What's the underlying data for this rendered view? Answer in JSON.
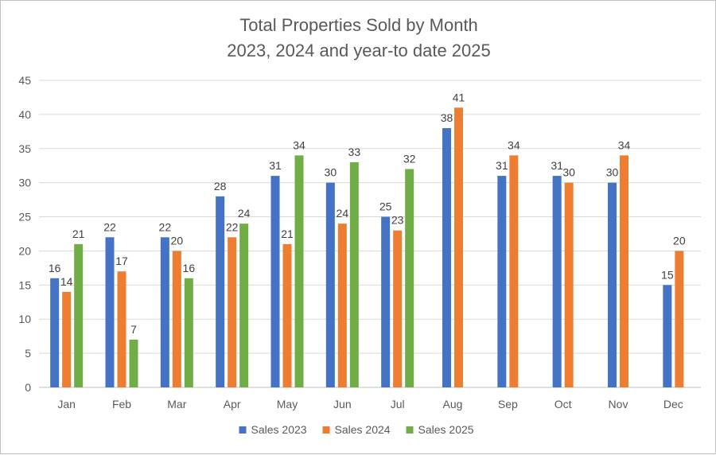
{
  "chart_data": {
    "type": "bar",
    "title": "Total Properties Sold by Month",
    "subtitle": "2023, 2024 and year-to date 2025",
    "xlabel": "",
    "ylabel": "",
    "ylim": [
      0,
      45
    ],
    "yticks": [
      0,
      5,
      10,
      15,
      20,
      25,
      30,
      35,
      40,
      45
    ],
    "grid": true,
    "legend_position": "bottom",
    "categories": [
      "Jan",
      "Feb",
      "Mar",
      "Apr",
      "May",
      "Jun",
      "Jul",
      "Aug",
      "Sep",
      "Oct",
      "Nov",
      "Dec"
    ],
    "series": [
      {
        "name": "Sales 2023",
        "color": "#4472C4",
        "values": [
          16,
          22,
          22,
          28,
          31,
          30,
          25,
          38,
          31,
          31,
          30,
          15
        ]
      },
      {
        "name": "Sales 2024",
        "color": "#ED7D31",
        "values": [
          14,
          17,
          20,
          22,
          21,
          24,
          23,
          41,
          34,
          30,
          34,
          20
        ]
      },
      {
        "name": "Sales 2025",
        "color": "#70AD47",
        "values": [
          21,
          7,
          16,
          24,
          34,
          33,
          32,
          null,
          null,
          null,
          null,
          null
        ]
      }
    ]
  }
}
